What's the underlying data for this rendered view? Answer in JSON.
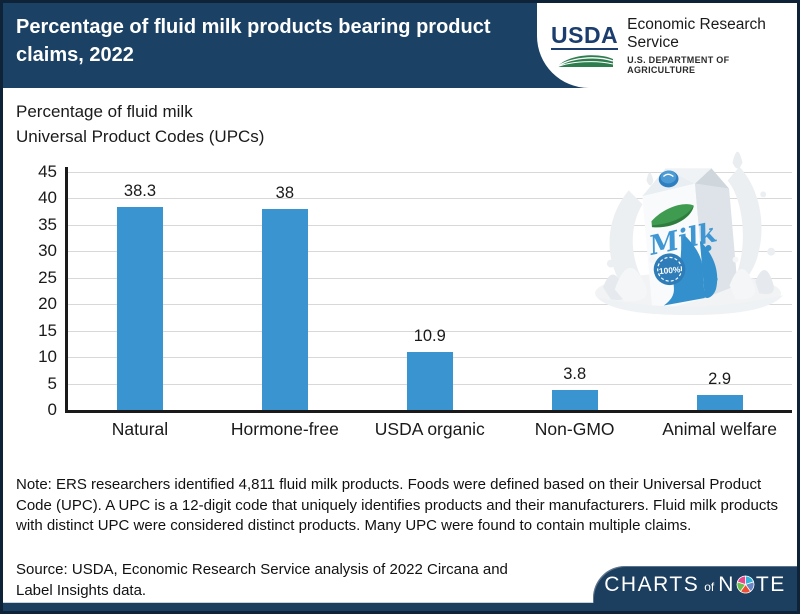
{
  "header": {
    "title": "Percentage of fluid milk products bearing product claims, 2022",
    "logo": {
      "acronym": "USDA",
      "agency": "Economic Research Service",
      "department": "U.S. DEPARTMENT OF AGRICULTURE"
    }
  },
  "chart_data": {
    "type": "bar",
    "title": "Percentage of fluid milk products bearing product claims, 2022",
    "subtitle_lines": [
      "Percentage of fluid milk",
      "Universal Product Codes (UPCs)"
    ],
    "categories": [
      "Natural",
      "Hormone-free",
      "USDA organic",
      "Non-GMO",
      "Animal welfare"
    ],
    "values": [
      38.3,
      38,
      10.9,
      3.8,
      2.9
    ],
    "value_labels": [
      "38.3",
      "38",
      "10.9",
      "3.8",
      "2.9"
    ],
    "xlabel": "",
    "ylabel": "Percentage of fluid milk Universal Product Codes (UPCs)",
    "ylim": [
      0,
      45
    ],
    "yticks": [
      0,
      5,
      10,
      15,
      20,
      25,
      30,
      35,
      40,
      45
    ],
    "grid": true,
    "bar_color": "#3994CF"
  },
  "note": "Note: ERS researchers identified 4,811 fluid milk products. Foods were defined based on their Universal Product Code (UPC). A UPC is a 12-digit code that uniquely identifies products and their manufacturers. Fluid milk products with distinct UPC were considered distinct products. Many UPC were found to contain multiple claims.",
  "source": "Source: USDA, Economic Research Service analysis of 2022 Circana and Label Insights data.",
  "footer_badge": {
    "charts": "CHARTS",
    "of": "of",
    "note_start": "N",
    "note_end": "TE"
  },
  "illustration": {
    "milk_text": "Milk",
    "badge_text": "100%"
  },
  "colors": {
    "header_navy": "#1B4164",
    "bar_blue": "#3994CF",
    "border": "#0E2337",
    "grid": "#D8D8D8",
    "usda_blue": "#1C3E6E",
    "usda_green": "#2E7D4F",
    "badge_navy": "#1C3E5F"
  }
}
